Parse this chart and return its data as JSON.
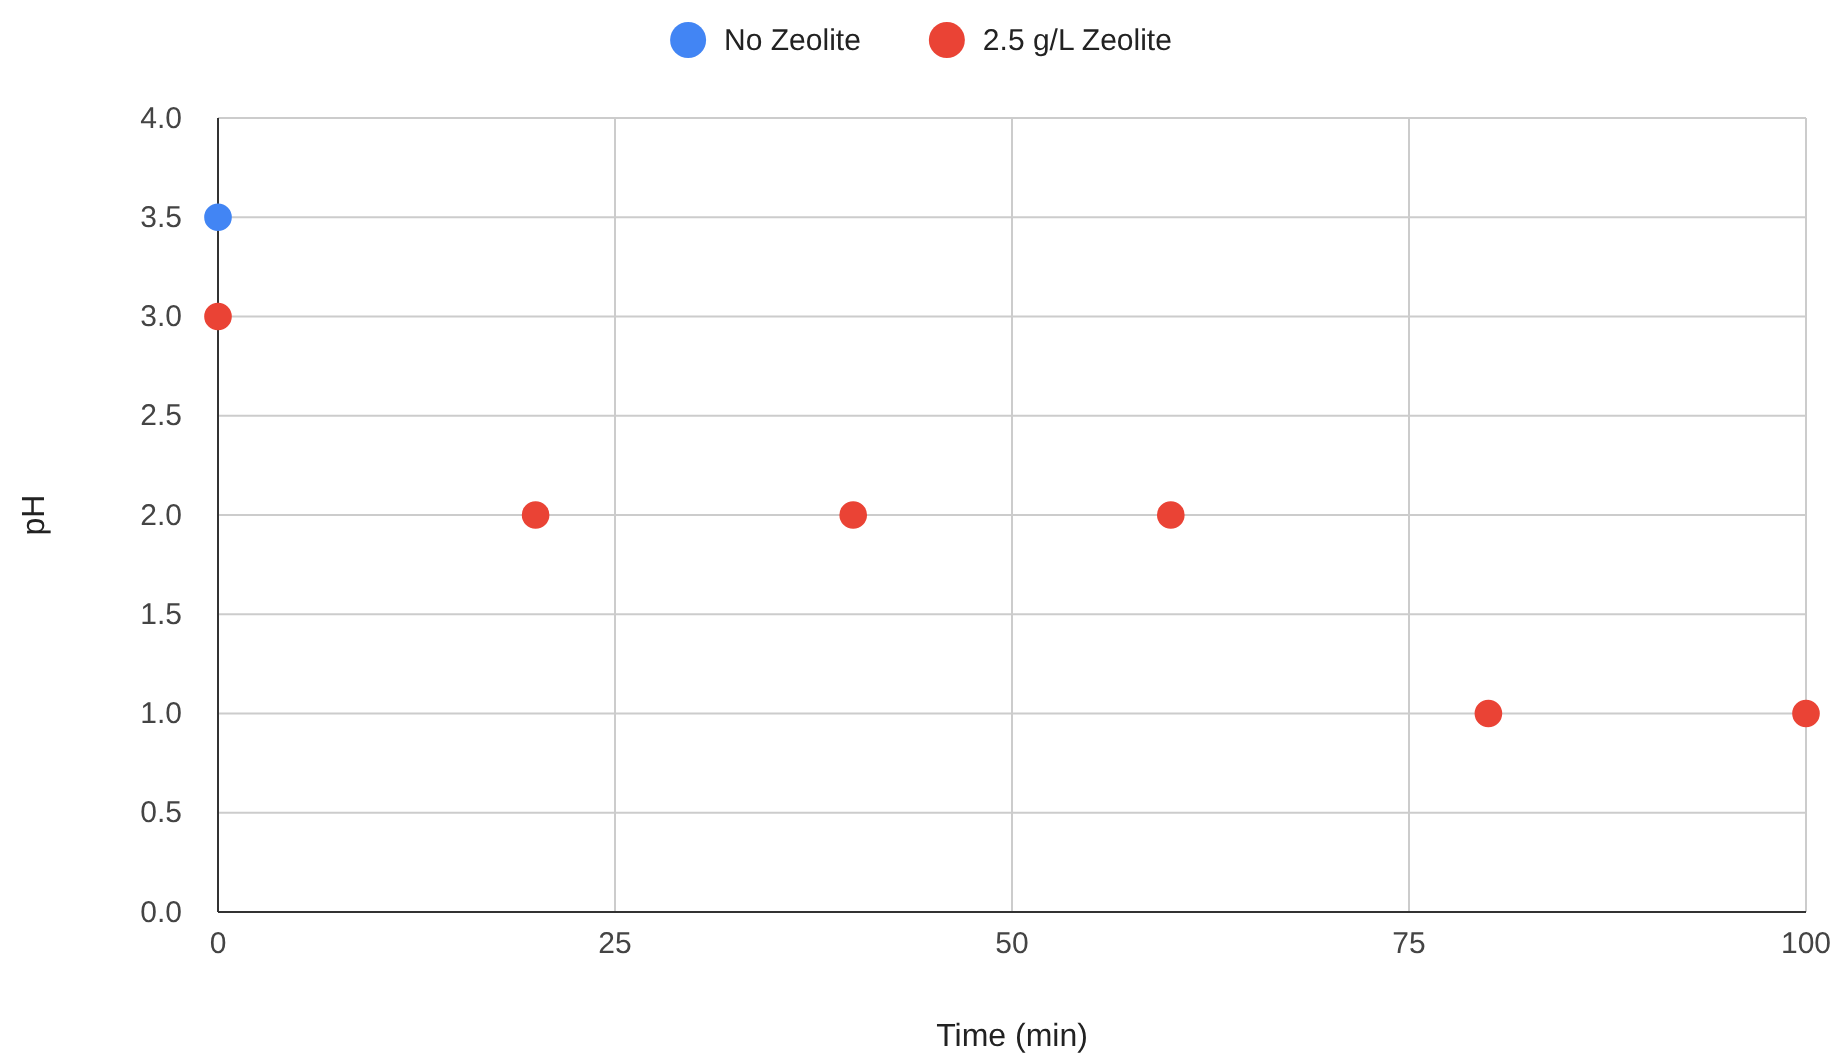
{
  "chart_data": {
    "type": "scatter",
    "xlabel": "Time (min)",
    "ylabel": "pH",
    "xlim": [
      0,
      100
    ],
    "xticks": [
      0,
      25,
      50,
      75,
      100
    ],
    "ylim": [
      0,
      4
    ],
    "yticks": [
      {
        "value": 0,
        "label": "0.0"
      },
      {
        "value": 0.5,
        "label": "0.5"
      },
      {
        "value": 1,
        "label": "1.0"
      },
      {
        "value": 1.5,
        "label": "1.5"
      },
      {
        "value": 2,
        "label": "2.0"
      },
      {
        "value": 2.5,
        "label": "2.5"
      },
      {
        "value": 3,
        "label": "3.0"
      },
      {
        "value": 3.5,
        "label": "3.5"
      },
      {
        "value": 4,
        "label": "4.0"
      }
    ],
    "series": [
      {
        "name": "No Zeolite",
        "color": "#4285f4",
        "x": [
          0
        ],
        "values": [
          3.5
        ]
      },
      {
        "name": "2.5 g/L Zeolite",
        "color": "#ea4335",
        "x": [
          0,
          20,
          40,
          60,
          80,
          100
        ],
        "values": [
          3,
          2,
          2,
          2,
          1,
          1
        ]
      }
    ],
    "grid": true,
    "legend": "top",
    "marker": "circle"
  }
}
